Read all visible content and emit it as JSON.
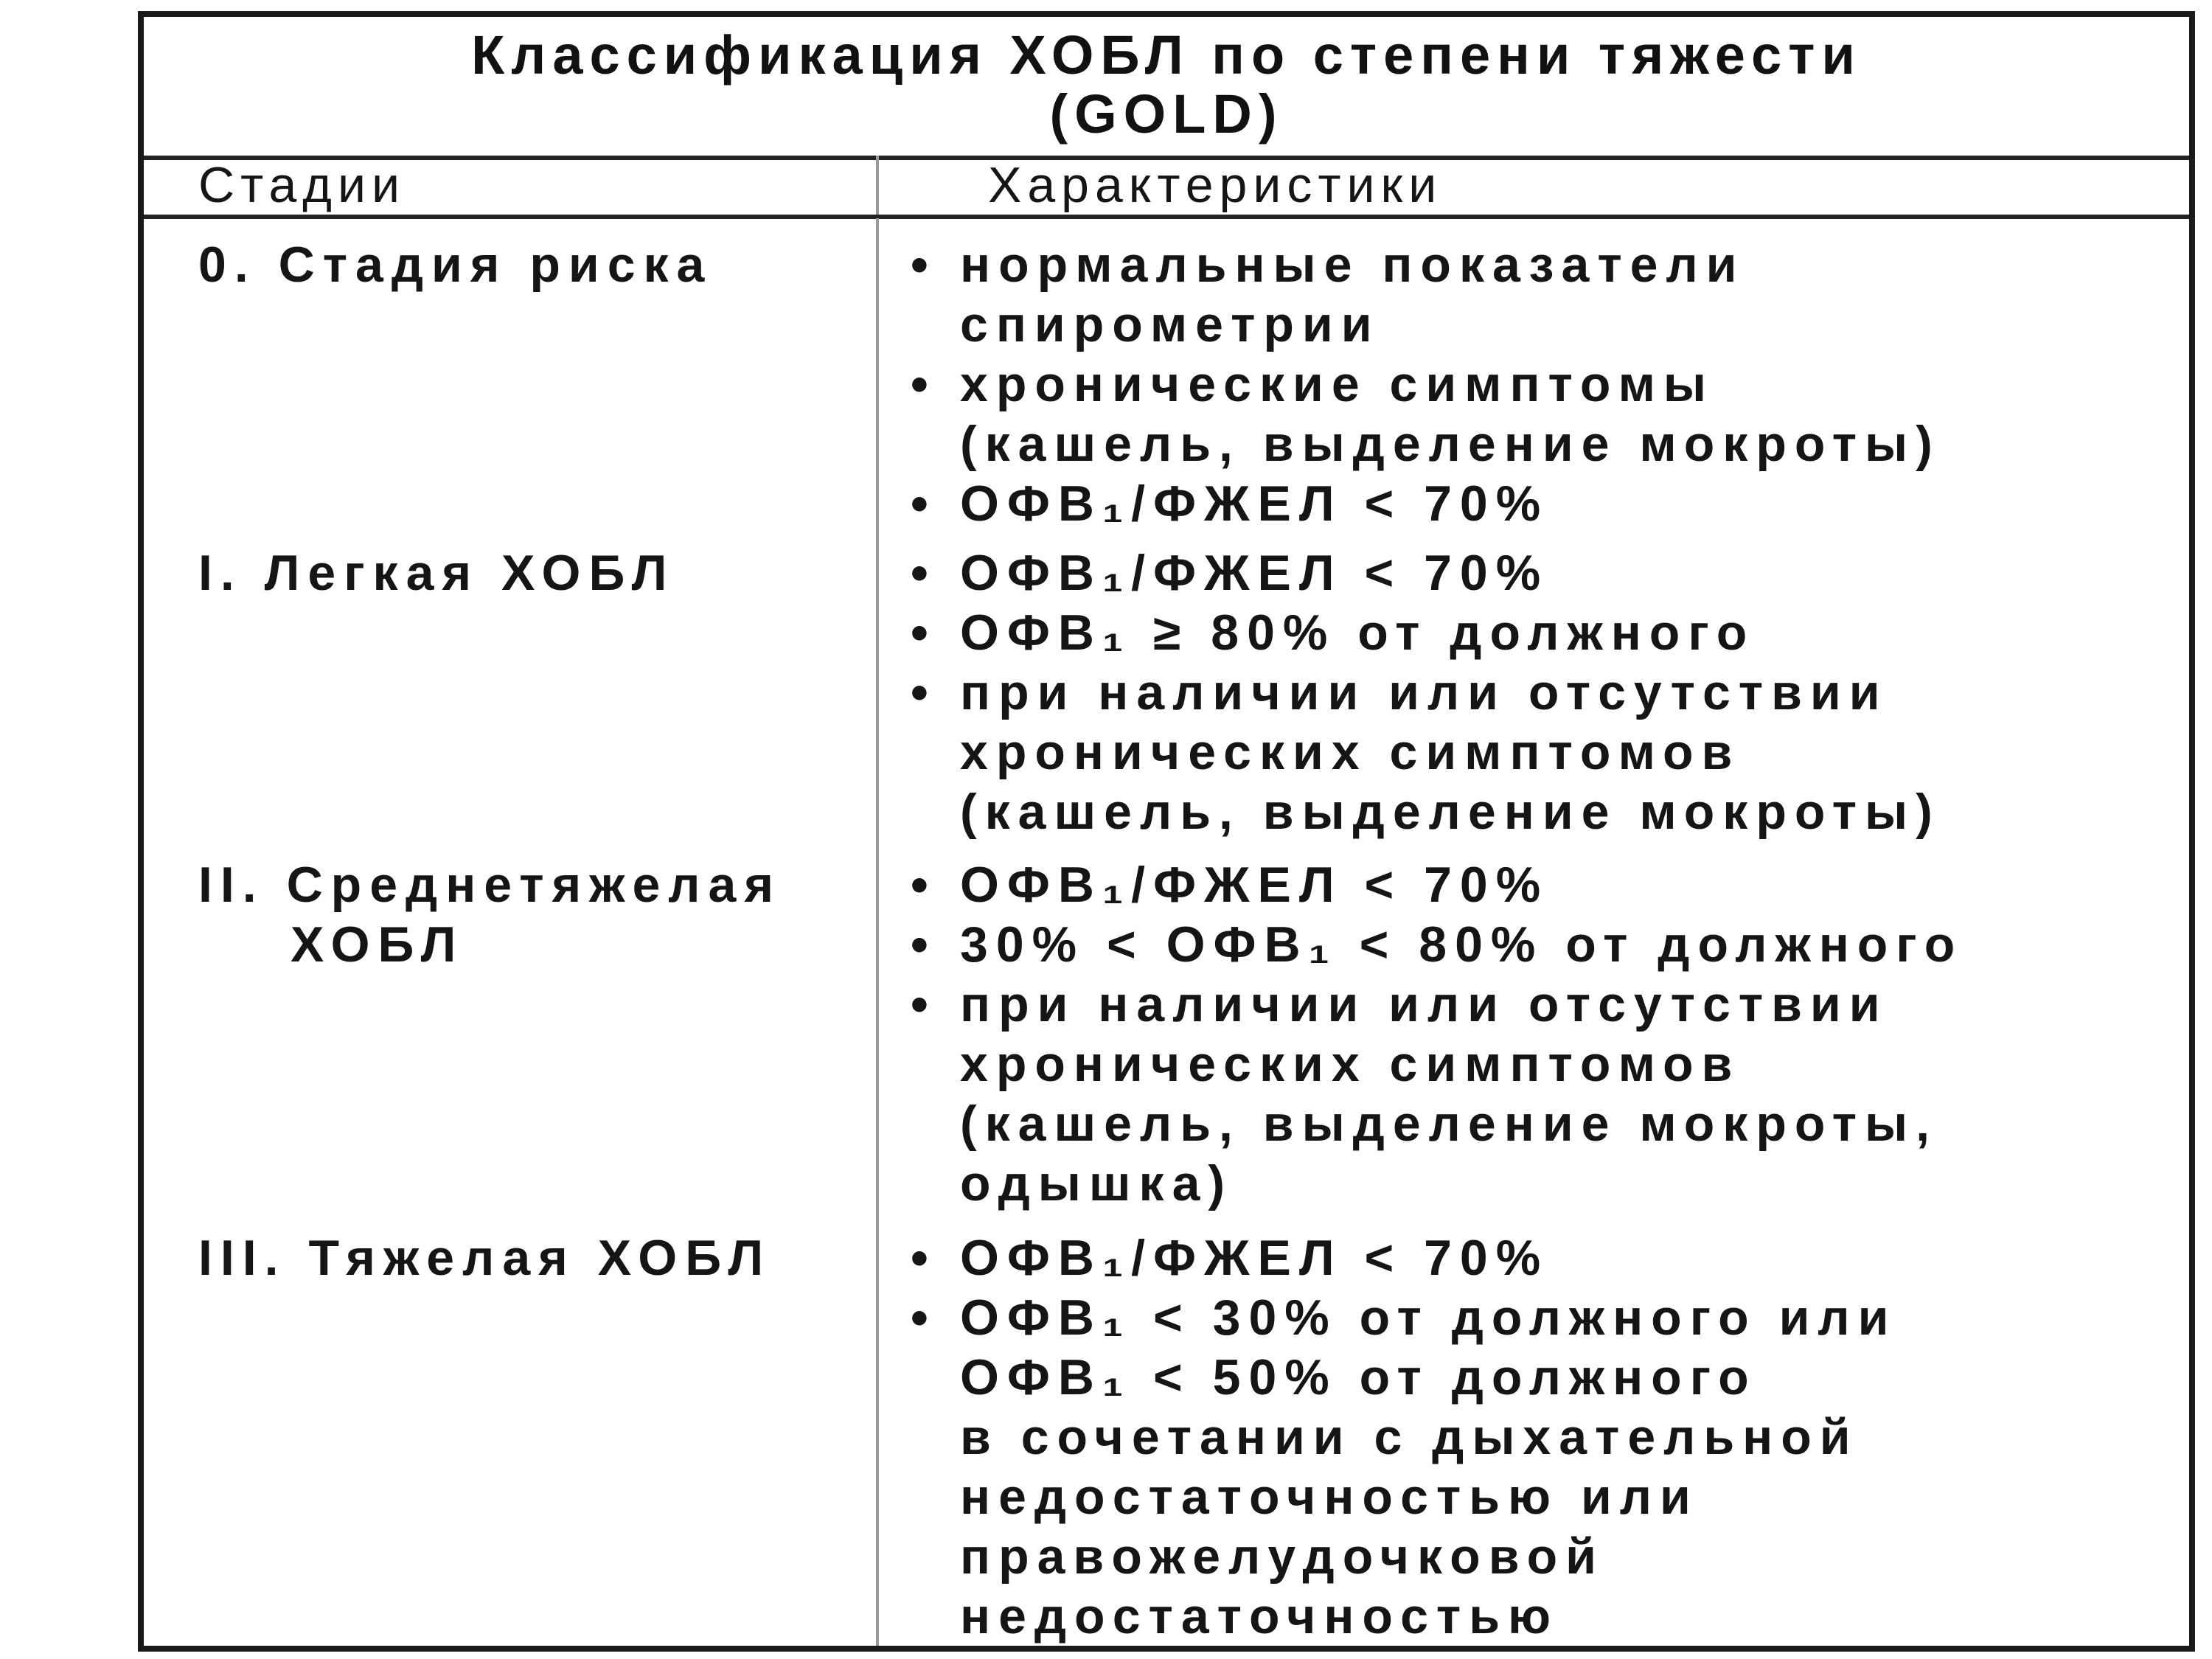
{
  "title": {
    "line1": "Классификация ХОБЛ по степени тяжести",
    "line2": "(GOLD)"
  },
  "headers": {
    "stages": "Стадии",
    "characteristics": "Характеристики"
  },
  "rows": [
    {
      "stage": [
        "0. Стадия риска"
      ],
      "items": [
        [
          "нормальные показатели",
          "спирометрии"
        ],
        [
          "хронические симптомы",
          "(кашель, выделение мокроты)"
        ],
        [
          "ОФВ₁/ФЖЕЛ < 70%"
        ]
      ]
    },
    {
      "stage": [
        "I. Легкая ХОБЛ"
      ],
      "items": [
        [
          "ОФВ₁/ФЖЕЛ < 70%"
        ],
        [
          "ОФВ₁ ≥ 80% от должного"
        ],
        [
          "при наличии или отсутствии",
          "хронических симптомов",
          "(кашель, выделение мокроты)"
        ]
      ]
    },
    {
      "stage": [
        "II. Среднетяжелая",
        "ХОБЛ"
      ],
      "items": [
        [
          "ОФВ₁/ФЖЕЛ < 70%"
        ],
        [
          "30% < ОФВ₁ < 80% от должного"
        ],
        [
          "при наличии или отсутствии",
          "хронических симптомов",
          "(кашель, выделение мокроты,",
          "одышка)"
        ]
      ]
    },
    {
      "stage": [
        "III. Тяжелая ХОБЛ"
      ],
      "items": [
        [
          "ОФВ₁/ФЖЕЛ < 70%"
        ],
        [
          "ОФВ₁ < 30% от должного или",
          "ОФВ₁ < 50% от должного",
          "в сочетании с дыхательной",
          "недостаточностью или",
          "правожелудочковой",
          "недостаточностью"
        ]
      ]
    }
  ],
  "bullet_glyph": "•"
}
